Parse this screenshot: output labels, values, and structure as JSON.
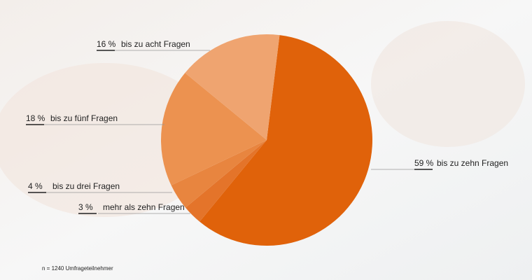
{
  "chart_data": {
    "type": "pie",
    "categories": [
      "bis zu zehn Fragen",
      "mehr als zehn Fragen",
      "bis zu drei Fragen",
      "bis zu fünf Fragen",
      "bis zu acht Fragen"
    ],
    "values": [
      59,
      3,
      4,
      18,
      16
    ],
    "value_labels": [
      "59 %",
      "3 %",
      "4 %",
      "18 %",
      "16 %"
    ],
    "colors": [
      "#e0620a",
      "#e4742a",
      "#e8853f",
      "#ec9250",
      "#efa470"
    ],
    "note": "n = 1240 Umfrageteilnehmer"
  }
}
